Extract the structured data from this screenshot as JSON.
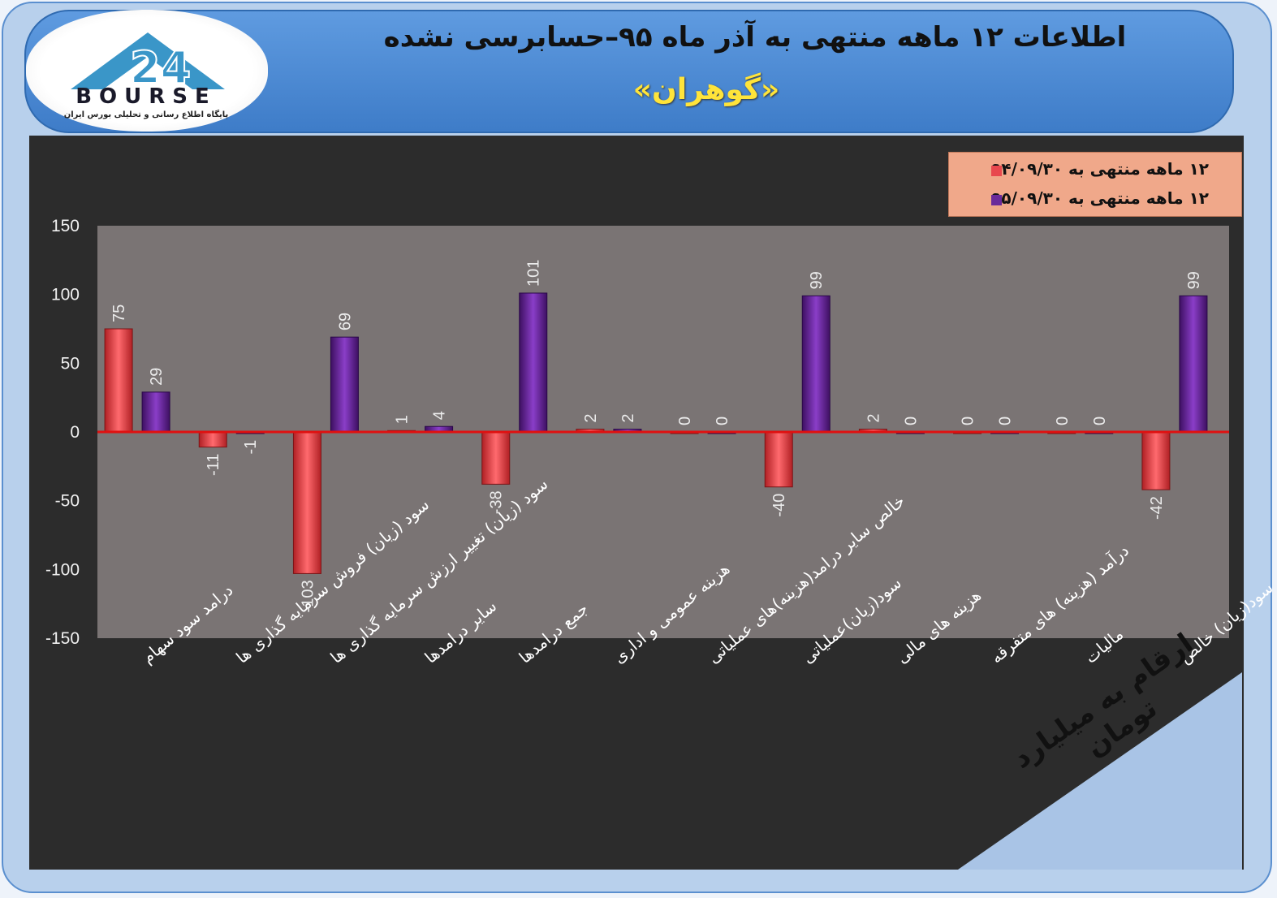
{
  "header": {
    "title": "اطلاعات ۱۲ ماهه منتهی به آذر ماه ۹۵–حسابرسی نشده",
    "subtitle": "«گوهران»"
  },
  "logo": {
    "name": "BOURSE",
    "tagline": "پایگاه اطلاع رسانی و تحلیلی بورس ایران"
  },
  "units_note": "ارقام به میلیارد تومان",
  "colors": {
    "series1": "#e8484e",
    "series2": "#6a2a9a",
    "plot_bg": "#7a7474",
    "zero_line": "#e01010"
  },
  "chart_data": {
    "type": "bar",
    "categories": [
      "درامد سود سهام",
      "سود (زیان) فروش سرمایه گذاری ها",
      "سود (زیان) تغییر ارزش سرمایه گذاری ها",
      "سایر درامدها",
      "جمع درامدها",
      "هزینه عمومی و اداری",
      "خالص سایر درامد(هزینه)های عملیاتی",
      "سود(زیان)عملیاتی",
      "هزینه های مالی",
      "درآمد (هزینه) های متفرقه",
      "مالیات",
      "سود(زیان) خالص"
    ],
    "series": [
      {
        "name": "۱۲ ماهه منتهی به ۹۴/۰۹/۳۰",
        "values": [
          75,
          -11,
          -103,
          1,
          -38,
          2,
          0,
          -40,
          2,
          0,
          0,
          -42
        ]
      },
      {
        "name": "۱۲ ماهه منتهی به ۹۵/۰۹/۳۰",
        "values": [
          29,
          -1,
          69,
          4,
          101,
          2,
          0,
          99,
          0,
          0,
          0,
          99
        ]
      }
    ],
    "yticks": [
      150,
      100,
      50,
      0,
      -50,
      -100,
      -150
    ],
    "ylim": [
      -150,
      150
    ],
    "grid": false,
    "legend_position": "top-right"
  }
}
